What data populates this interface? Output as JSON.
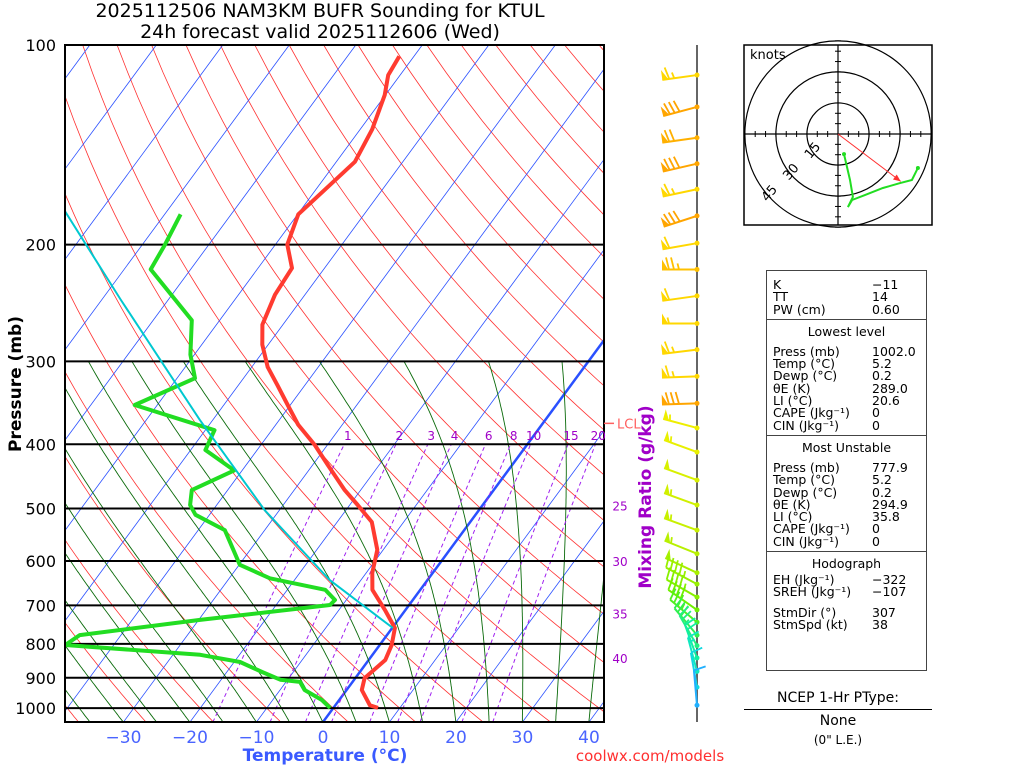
{
  "title": {
    "line1": "2025112506 NAM3KM BUFR Sounding for KTUL",
    "line2": "24h forecast valid 2025112606 (Wed)"
  },
  "credit": "coolwx.com/models",
  "lcl_label": "LCL",
  "chart_data": {
    "type": "skew-t",
    "title": "2025112506 NAM3KM BUFR Sounding for KTUL",
    "subtitle": "24h forecast valid 2025112606 (Wed)",
    "xlabel": "Temperature (°C)",
    "ylabel": "Pressure (mb)",
    "y2label": "Mixing Ratio (g/kg)",
    "xlim": [
      -40,
      40
    ],
    "ylim": [
      1050,
      100
    ],
    "pressure_ticks": [
      "100",
      "200",
      "300",
      "400",
      "500",
      "600",
      "700",
      "800",
      "900",
      "1000"
    ],
    "temperature_ticks": [
      "−30",
      "−20",
      "−10",
      "0",
      "10",
      "20",
      "30",
      "40"
    ],
    "temperature_tick_values": [
      -30,
      -20,
      -10,
      0,
      10,
      20,
      30,
      40
    ],
    "mixing_ratio_labels": [
      "1",
      "2",
      "3",
      "4",
      "6",
      "8",
      "10",
      "15",
      "20"
    ],
    "mixing_ratio_values": [
      1,
      2,
      3,
      4,
      6,
      8,
      10,
      15,
      20
    ],
    "right_labels": [
      "25",
      "30",
      "35",
      "40"
    ],
    "right_label_pressures": [
      495,
      600,
      720,
      840
    ],
    "lcl_pressure": 372,
    "series": [
      {
        "name": "Temperature",
        "color": "#ff3b30",
        "points": [
          [
            999,
            6.7
          ],
          [
            990,
            5.2
          ],
          [
            939,
            2.3
          ],
          [
            901,
            1.4
          ],
          [
            846,
            2.5
          ],
          [
            803,
            1.8
          ],
          [
            757,
            0.4
          ],
          [
            711,
            -3.1
          ],
          [
            663,
            -7.2
          ],
          [
            625,
            -9.1
          ],
          [
            577,
            -10.9
          ],
          [
            524,
            -14.8
          ],
          [
            494,
            -18.8
          ],
          [
            469,
            -22.4
          ],
          [
            430,
            -27.7
          ],
          [
            401,
            -31.9
          ],
          [
            374,
            -36.6
          ],
          [
            349,
            -40.4
          ],
          [
            326,
            -44.1
          ],
          [
            306,
            -47.6
          ],
          [
            283,
            -50.9
          ],
          [
            264,
            -53.1
          ],
          [
            238,
            -54.5
          ],
          [
            217,
            -54.9
          ],
          [
            200,
            -58.2
          ],
          [
            180,
            -59.9
          ],
          [
            165,
            -58.6
          ],
          [
            150,
            -57.2
          ],
          [
            134,
            -58.2
          ],
          [
            119,
            -60.1
          ],
          [
            111,
            -61.8
          ],
          [
            104,
            -62.2
          ]
        ]
      },
      {
        "name": "Dewpoint",
        "color": "#22dd22",
        "points": [
          [
            999,
            -0.5
          ],
          [
            972,
            -2.6
          ],
          [
            939,
            -6.3
          ],
          [
            913,
            -7.9
          ],
          [
            906,
            -11.1
          ],
          [
            882,
            -14.7
          ],
          [
            852,
            -19.1
          ],
          [
            831,
            -25.9
          ],
          [
            803,
            -47.3
          ],
          [
            776,
            -46.2
          ],
          [
            736,
            -29.8
          ],
          [
            699,
            -11.9
          ],
          [
            687,
            -11.7
          ],
          [
            663,
            -14.3
          ],
          [
            637,
            -23.9
          ],
          [
            608,
            -29.9
          ],
          [
            539,
            -36.0
          ],
          [
            511,
            -42.1
          ],
          [
            494,
            -44.0
          ],
          [
            469,
            -45.4
          ],
          [
            438,
            -41.2
          ],
          [
            408,
            -47.8
          ],
          [
            381,
            -48.6
          ],
          [
            349,
            -63.4
          ],
          [
            318,
            -57.3
          ],
          [
            293,
            -60.6
          ],
          [
            260,
            -64.2
          ],
          [
            218,
            -76.0
          ],
          [
            200,
            -76.6
          ],
          [
            180,
            -77.6
          ]
        ]
      },
      {
        "name": "Parcel",
        "color": "#00c8d0",
        "points": [
          [
            757,
            0.1
          ],
          [
            641,
            -14.7
          ],
          [
            503,
            -32.2
          ],
          [
            368,
            -51.9
          ],
          [
            242,
            -77.2
          ],
          [
            177,
            -95.7
          ]
        ]
      }
    ],
    "winds": [
      [
        111,
        262,
        65,
        "#ffd700"
      ],
      [
        124,
        255,
        80,
        "#ffa500"
      ],
      [
        138,
        262,
        70,
        "#ffb000"
      ],
      [
        151,
        257,
        80,
        "#ffa500"
      ],
      [
        165,
        258,
        65,
        "#ffd700"
      ],
      [
        181,
        252,
        80,
        "#ffa500"
      ],
      [
        199,
        260,
        60,
        "#ffd700"
      ],
      [
        218,
        270,
        75,
        "#ffc000"
      ],
      [
        239,
        262,
        60,
        "#ffd700"
      ],
      [
        263,
        270,
        55,
        "#ffd700"
      ],
      [
        288,
        263,
        65,
        "#ffd700"
      ],
      [
        316,
        268,
        65,
        "#ffd700"
      ],
      [
        347,
        268,
        80,
        "#ffa500"
      ],
      [
        378,
        285,
        55,
        "#eeee00"
      ],
      [
        411,
        290,
        55,
        "#e8f000"
      ],
      [
        453,
        290,
        50,
        "#d8f000"
      ],
      [
        494,
        290,
        55,
        "#d0f000"
      ],
      [
        539,
        290,
        55,
        "#c8f000"
      ],
      [
        585,
        292,
        55,
        "#b8f000"
      ],
      [
        625,
        295,
        50,
        "#a8f000"
      ],
      [
        650,
        298,
        45,
        "#98f000"
      ],
      [
        680,
        300,
        45,
        "#88f000"
      ],
      [
        711,
        305,
        40,
        "#70f000"
      ],
      [
        742,
        310,
        35,
        "#50f020"
      ],
      [
        776,
        320,
        30,
        "#30f050"
      ],
      [
        805,
        330,
        25,
        "#20f080"
      ],
      [
        840,
        340,
        20,
        "#10f0a0"
      ],
      [
        880,
        345,
        15,
        "#10e8c0"
      ],
      [
        930,
        350,
        12,
        "#10d8e0"
      ],
      [
        990,
        355,
        8,
        "#20b0ff"
      ]
    ]
  },
  "hodograph": {
    "units_label": "knots",
    "ring_labels": [
      "15",
      "30",
      "45"
    ],
    "ring_values": [
      15,
      30,
      45
    ],
    "trace_uv_kt": [
      [
        2.9,
        -9.7
      ],
      [
        5.8,
        -22.2
      ],
      [
        7.2,
        -30.4
      ],
      [
        4.8,
        -35.3
      ],
      [
        6.8,
        -31.9
      ],
      [
        13.0,
        -29.5
      ],
      [
        21.7,
        -26.1
      ],
      [
        30.0,
        -23.7
      ],
      [
        35.7,
        -22.2
      ],
      [
        38.6,
        -16.4
      ]
    ],
    "storm_motion_uv_kt": [
      30.3,
      -22.9
    ]
  },
  "stats": {
    "indices": [
      [
        "K",
        "−11"
      ],
      [
        "TT",
        "14"
      ],
      [
        "PW (cm)",
        "0.60"
      ]
    ],
    "lowest": {
      "header": "Lowest level",
      "rows": [
        [
          "Press (mb)",
          "1002.0"
        ],
        [
          "Temp (°C)",
          "5.2"
        ],
        [
          "Dewp (°C)",
          "0.2"
        ],
        [
          "θE (K)",
          "289.0"
        ],
        [
          "LI (°C)",
          "20.6"
        ],
        [
          "CAPE (Jkg⁻¹)",
          "0"
        ],
        [
          "CIN (Jkg⁻¹)",
          "0"
        ]
      ]
    },
    "most_unstable": {
      "header": "Most Unstable",
      "rows": [
        [
          "Press (mb)",
          "777.9"
        ],
        [
          "Temp (°C)",
          "5.2"
        ],
        [
          "Dewp (°C)",
          "0.2"
        ],
        [
          "θE (K)",
          "294.9"
        ],
        [
          "LI (°C)",
          "35.8"
        ],
        [
          "CAPE (Jkg⁻¹)",
          "0"
        ],
        [
          "CIN (Jkg⁻¹)",
          "0"
        ]
      ]
    },
    "hodo": {
      "header": "Hodograph",
      "rows": [
        [
          "EH (Jkg⁻¹)",
          "−322"
        ],
        [
          "SREH (Jkg⁻¹)",
          "−107"
        ]
      ],
      "rows2": [
        [
          "StmDir (°)",
          "307"
        ],
        [
          "StmSpd (kt)",
          "38"
        ]
      ]
    }
  },
  "ptype": {
    "title": "NCEP 1-Hr PType:",
    "value": "None",
    "note": "(0\" L.E.)"
  }
}
